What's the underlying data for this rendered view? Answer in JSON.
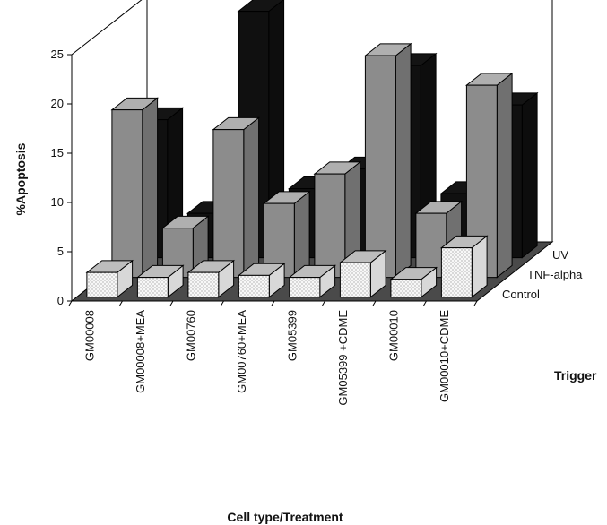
{
  "chart_data": {
    "type": "bar",
    "subtype": "3d-grouped-columns",
    "title": "",
    "xlabel": "Cell type/Treatment",
    "ylabel": "%Apoptosis",
    "zlabel": "Trigger",
    "ylim": [
      0,
      25
    ],
    "yticks": [
      "0",
      "5",
      "10",
      "15",
      "20",
      "25"
    ],
    "categories": [
      "GM00008",
      "GM00008+MEA",
      "GM00760",
      "GM00760+MEA",
      "GM05399",
      "GM05399 +CDME",
      "GM00010",
      "GM00010+CDME"
    ],
    "series": [
      {
        "name": "Control",
        "values": [
          2.5,
          2.0,
          2.5,
          2.2,
          2.0,
          3.5,
          1.8,
          5.0
        ],
        "color": "#f4f4f4",
        "pattern": "dotted"
      },
      {
        "name": "TNF-alpha",
        "values": [
          17,
          5,
          15,
          7.5,
          10.5,
          22.5,
          6.5,
          19.5
        ],
        "color": "#8c8c8c"
      },
      {
        "name": "UV",
        "values": [
          14,
          4.5,
          25,
          7,
          9,
          19.5,
          6.5,
          15.5
        ],
        "color": "#101010"
      }
    ],
    "grid": false,
    "legend": "none"
  }
}
